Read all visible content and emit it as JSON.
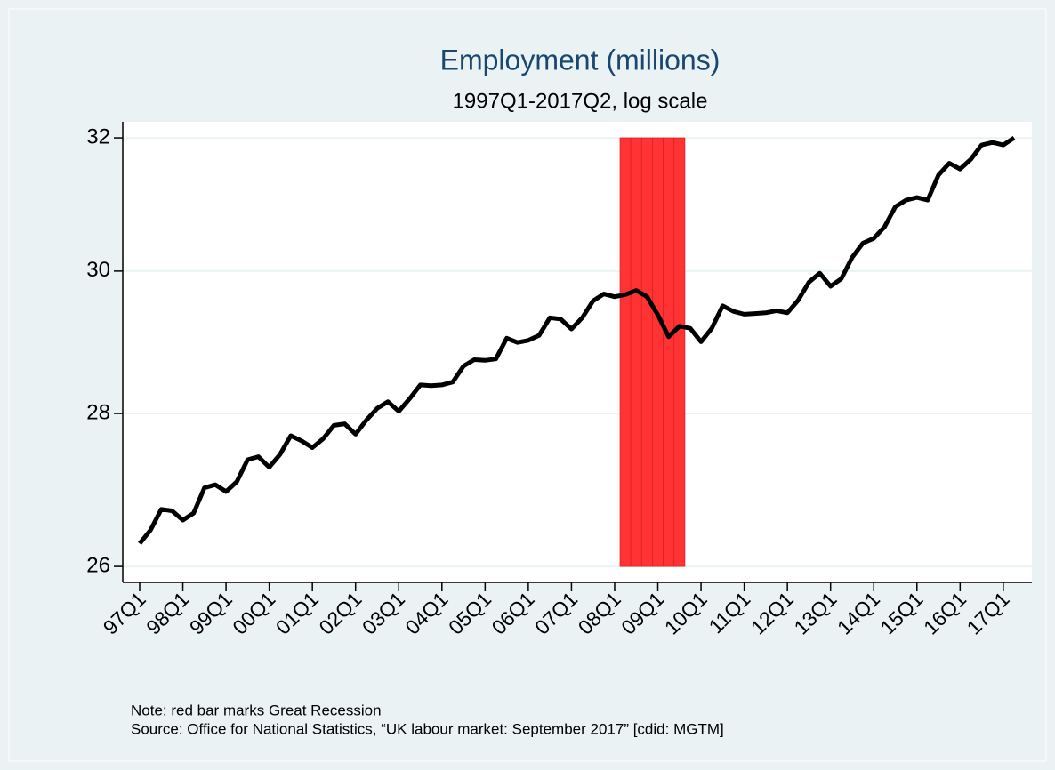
{
  "chart_data": {
    "type": "line",
    "title": "Employment (millions)",
    "subtitle": "1997Q1-2017Q2, log scale",
    "notes": [
      "Note: red bar marks Great Recession",
      "Source: Office for National Statistics,  “UK labour market: September 2017” [cdid: MGTM]"
    ],
    "categories": [
      "97Q1",
      null,
      null,
      null,
      "98Q1",
      null,
      null,
      null,
      "99Q1",
      null,
      null,
      null,
      "00Q1",
      null,
      null,
      null,
      "01Q1",
      null,
      null,
      null,
      "02Q1",
      null,
      null,
      null,
      "03Q1",
      null,
      null,
      null,
      "04Q1",
      null,
      null,
      null,
      "05Q1",
      null,
      null,
      null,
      "06Q1",
      null,
      null,
      null,
      "07Q1",
      null,
      null,
      null,
      "08Q1",
      null,
      null,
      null,
      "09Q1",
      null,
      null,
      null,
      "10Q1",
      null,
      null,
      null,
      "11Q1",
      null,
      null,
      null,
      "12Q1",
      null,
      null,
      null,
      "13Q1",
      null,
      null,
      null,
      "14Q1",
      null,
      null,
      null,
      "15Q1",
      null,
      null,
      null,
      "16Q1",
      null,
      null,
      null,
      "17Q1",
      null
    ],
    "series": [
      {
        "type": "bar",
        "color": "#ff3333",
        "values": [
          null,
          null,
          null,
          null,
          null,
          null,
          null,
          null,
          null,
          null,
          null,
          null,
          null,
          null,
          null,
          null,
          null,
          null,
          null,
          null,
          null,
          null,
          null,
          null,
          null,
          null,
          null,
          null,
          null,
          null,
          null,
          null,
          null,
          null,
          null,
          null,
          null,
          null,
          null,
          null,
          null,
          null,
          null,
          null,
          null,
          32,
          32,
          32,
          32,
          32,
          32,
          null,
          null,
          null,
          null,
          null,
          null,
          null,
          null,
          null,
          null,
          null,
          null,
          null,
          null,
          null,
          null,
          null,
          null,
          null,
          null,
          null,
          null,
          null,
          null,
          null,
          null,
          null,
          null,
          null,
          null,
          null
        ]
      },
      {
        "type": "line",
        "color": "#000000",
        "values": [
          26.29,
          26.46,
          26.73,
          26.71,
          26.59,
          26.68,
          27.01,
          27.05,
          26.96,
          27.09,
          27.38,
          27.42,
          27.28,
          27.45,
          27.7,
          27.63,
          27.54,
          27.66,
          27.84,
          27.86,
          27.72,
          27.91,
          28.07,
          28.16,
          28.03,
          28.2,
          28.39,
          28.38,
          28.39,
          28.43,
          28.65,
          28.74,
          28.73,
          28.75,
          29.04,
          28.98,
          29.01,
          29.08,
          29.33,
          29.31,
          29.17,
          29.33,
          29.57,
          29.67,
          29.63,
          29.66,
          29.72,
          29.63,
          29.37,
          29.06,
          29.21,
          29.18,
          28.99,
          29.18,
          29.5,
          29.42,
          29.38,
          29.39,
          29.4,
          29.43,
          29.4,
          29.58,
          29.84,
          29.97,
          29.78,
          29.89,
          30.2,
          30.41,
          30.48,
          30.65,
          30.95,
          31.05,
          31.09,
          31.05,
          31.43,
          31.61,
          31.52,
          31.67,
          31.89,
          31.93,
          31.89,
          32.0
        ]
      }
    ],
    "bar_base": 26,
    "ylim": [
      25.8,
      32.25
    ],
    "yticks": [
      26,
      28,
      30,
      32
    ],
    "log_scale": true,
    "grid": true
  }
}
